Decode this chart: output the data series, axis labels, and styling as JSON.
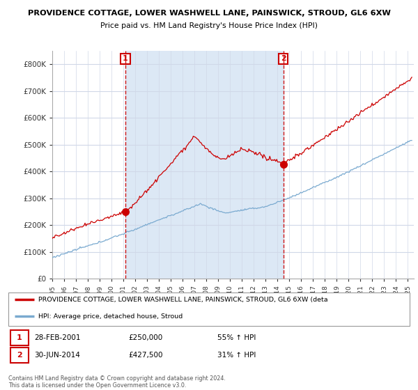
{
  "title1": "PROVIDENCE COTTAGE, LOWER WASHWELL LANE, PAINSWICK, STROUD, GL6 6XW",
  "title2": "Price paid vs. HM Land Registry's House Price Index (HPI)",
  "legend_red": "PROVIDENCE COTTAGE, LOWER WASHWELL LANE, PAINSWICK, STROUD, GL6 6XW (deta",
  "legend_blue": "HPI: Average price, detached house, Stroud",
  "transaction1_date": "28-FEB-2001",
  "transaction1_price": 250000,
  "transaction1_label": "55% ↑ HPI",
  "transaction2_date": "30-JUN-2014",
  "transaction2_price": 427500,
  "transaction2_label": "31% ↑ HPI",
  "footnote1": "Contains HM Land Registry data © Crown copyright and database right 2024.",
  "footnote2": "This data is licensed under the Open Government Licence v3.0.",
  "ylim": [
    0,
    850000
  ],
  "yticks": [
    0,
    100000,
    200000,
    300000,
    400000,
    500000,
    600000,
    700000,
    800000
  ],
  "xlim_start": 1995.0,
  "xlim_end": 2025.5,
  "background_color": "#ffffff",
  "grid_color": "#d0d8e8",
  "shade_color": "#dce8f5",
  "red_color": "#cc0000",
  "blue_color": "#7aaad0",
  "vline_color": "#cc0000"
}
